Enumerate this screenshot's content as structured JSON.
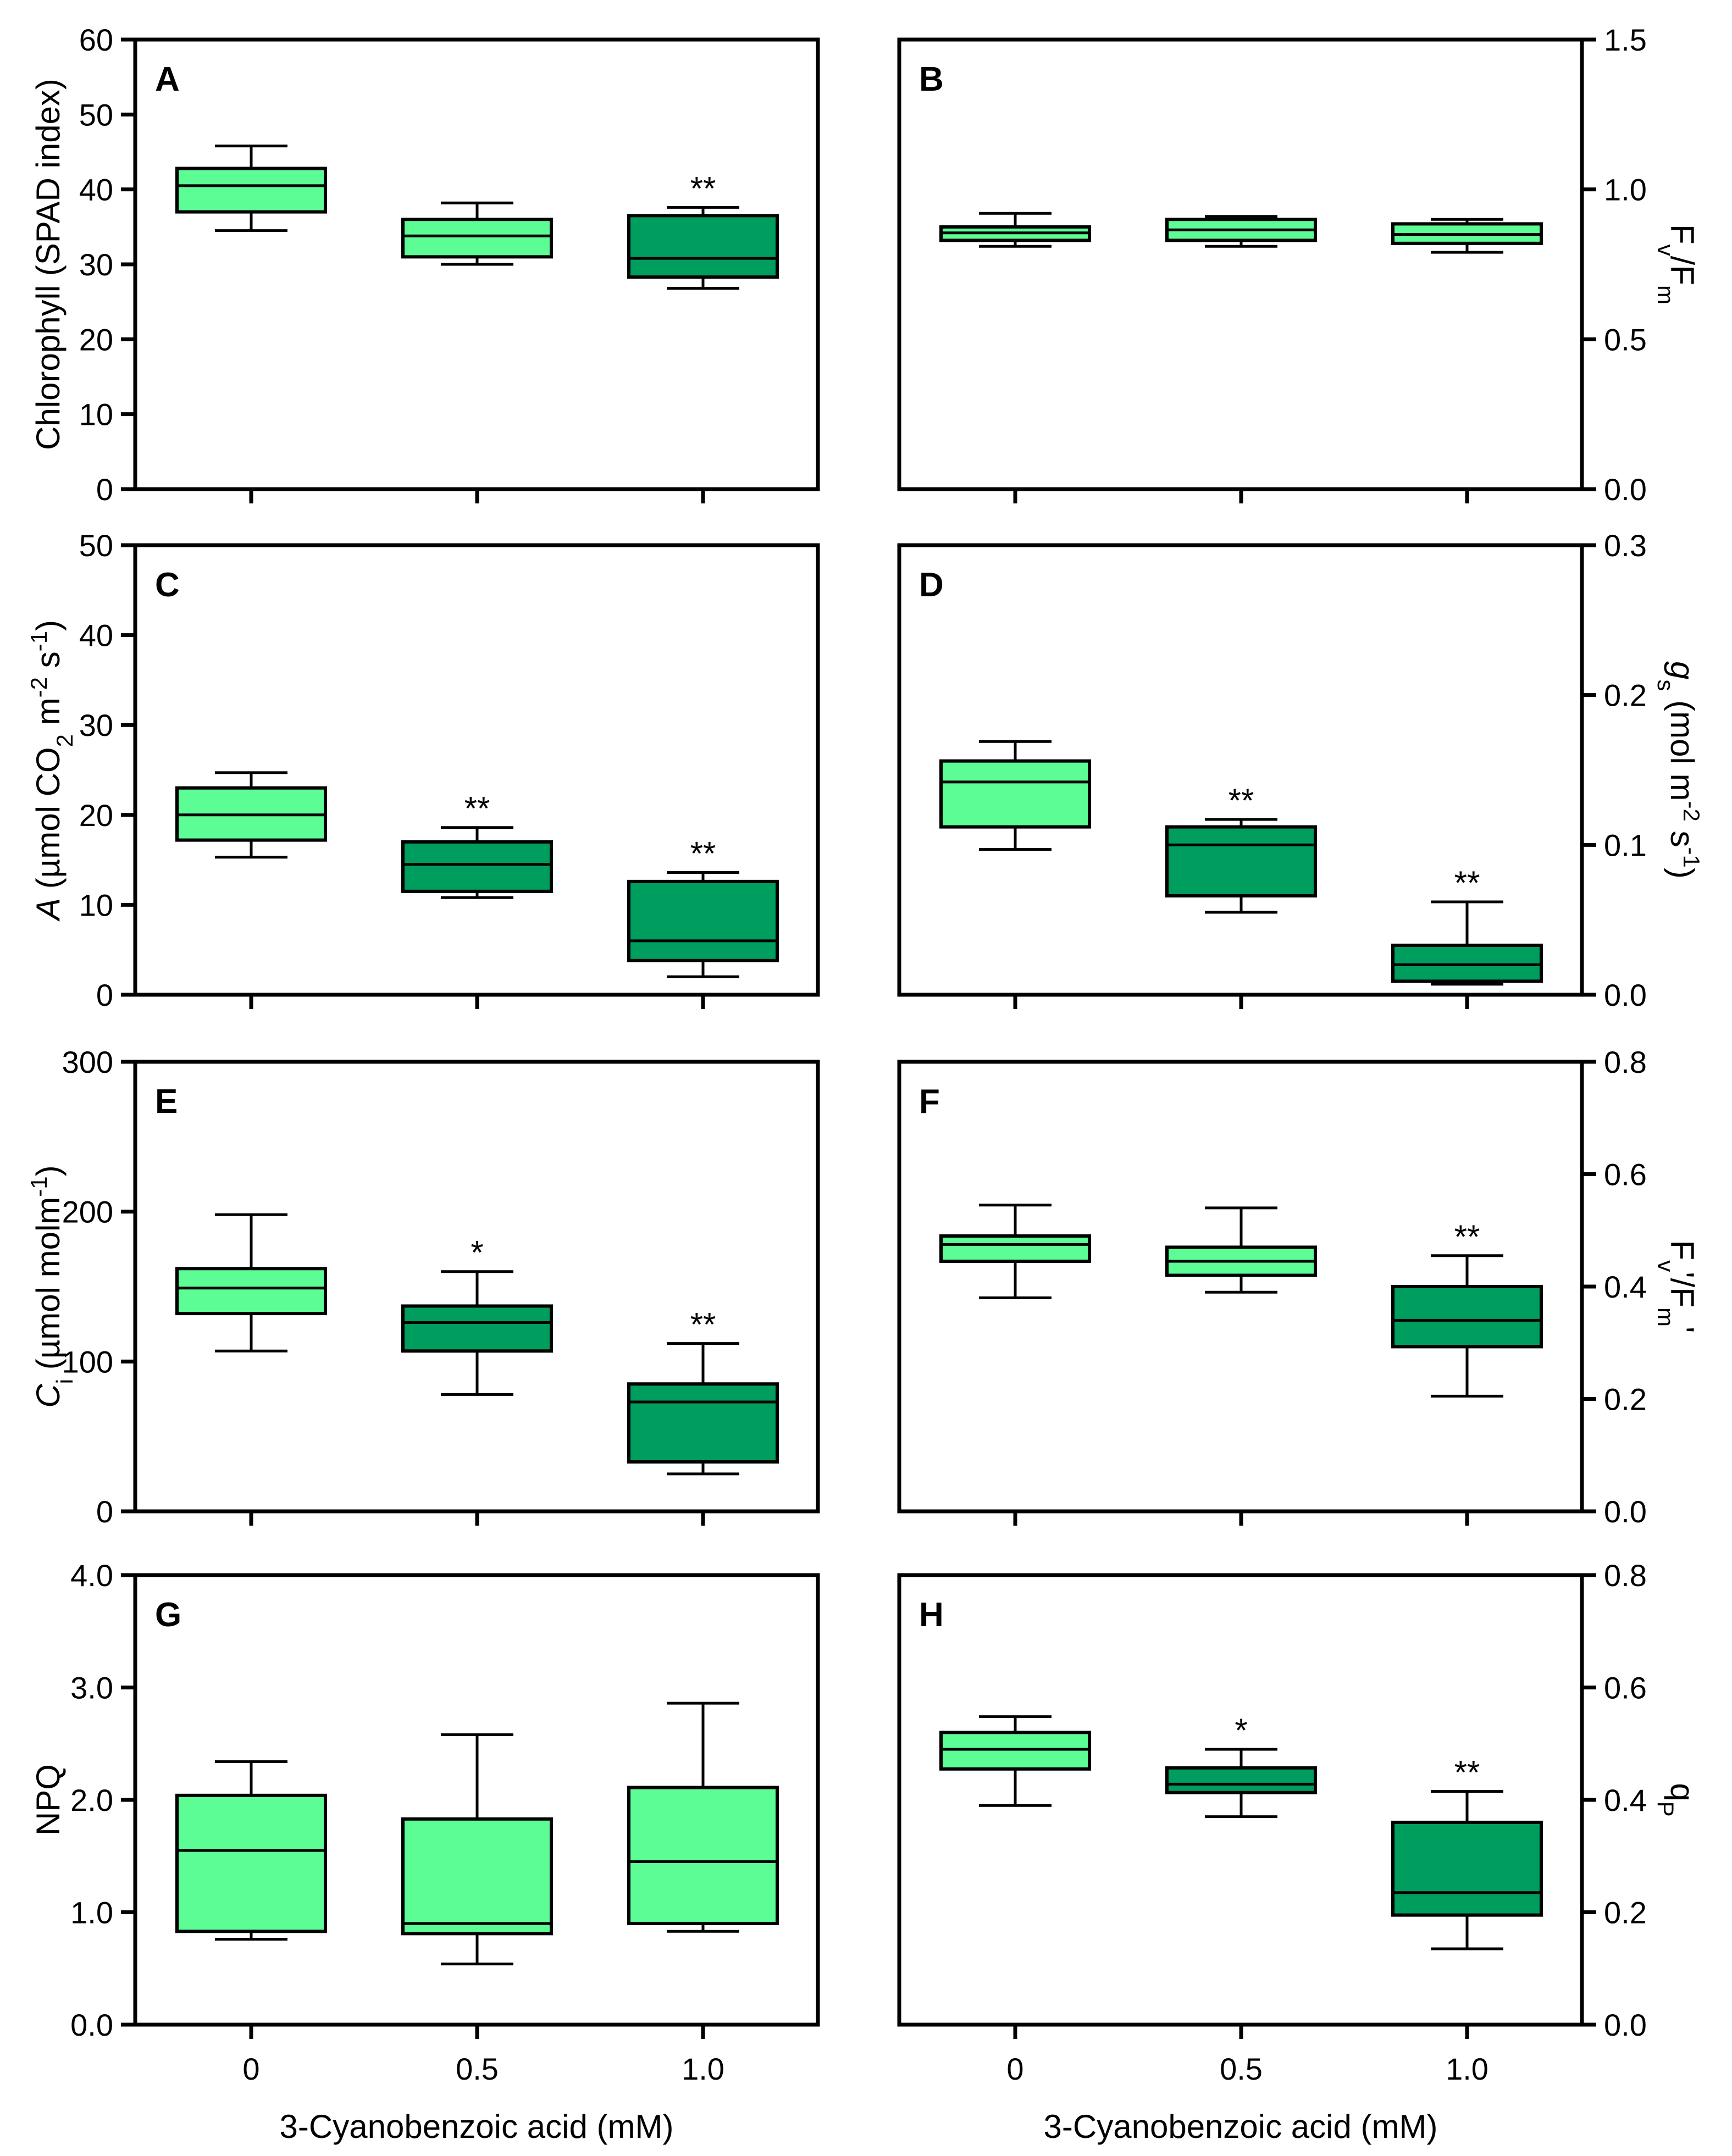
{
  "colors": {
    "light": "#5dfd96",
    "dark": "#009e5e",
    "line": "#000000"
  },
  "chart_data": [
    {
      "panel": "A",
      "type": "box",
      "title": "",
      "ylabel": "Chlorophyll (SPAD index)",
      "xlabel": "",
      "y_axis_side": "left",
      "ylim": [
        0,
        60
      ],
      "yticks": [
        "0",
        "10",
        "20",
        "30",
        "40",
        "50",
        "60"
      ],
      "ytick_values": [
        0,
        10,
        20,
        30,
        40,
        50,
        60
      ],
      "categories": [
        "0",
        "0.5",
        "1.0"
      ],
      "boxes": [
        {
          "min": 34.5,
          "q1": 37,
          "median": 40.5,
          "q3": 42.8,
          "max": 45.8,
          "color": "light",
          "sig": ""
        },
        {
          "min": 30,
          "q1": 31,
          "median": 33.8,
          "q3": 36,
          "max": 38.2,
          "color": "light",
          "sig": ""
        },
        {
          "min": 26.8,
          "q1": 28.3,
          "median": 30.8,
          "q3": 36.5,
          "max": 37.6,
          "color": "dark",
          "sig": "**"
        }
      ]
    },
    {
      "panel": "B",
      "type": "box",
      "title": "",
      "ylabel": "Fv/Fm",
      "xlabel": "",
      "y_axis_side": "right",
      "ylim": [
        0,
        1.5
      ],
      "yticks": [
        "0.0",
        "0.5",
        "1.0",
        "1.5"
      ],
      "ytick_values": [
        0,
        0.5,
        1.0,
        1.5
      ],
      "categories": [
        "0",
        "0.5",
        "1.0"
      ],
      "boxes": [
        {
          "min": 0.81,
          "q1": 0.83,
          "median": 0.855,
          "q3": 0.875,
          "max": 0.92,
          "color": "light",
          "sig": ""
        },
        {
          "min": 0.81,
          "q1": 0.83,
          "median": 0.865,
          "q3": 0.9,
          "max": 0.91,
          "color": "light",
          "sig": ""
        },
        {
          "min": 0.79,
          "q1": 0.82,
          "median": 0.85,
          "q3": 0.885,
          "max": 0.9,
          "color": "light",
          "sig": ""
        }
      ]
    },
    {
      "panel": "C",
      "type": "box",
      "title": "",
      "ylabel": "A (µmol CO2 m-2 s-1)",
      "xlabel": "",
      "y_axis_side": "left",
      "ylim": [
        0,
        50
      ],
      "yticks": [
        "0",
        "10",
        "20",
        "30",
        "40",
        "50"
      ],
      "ytick_values": [
        0,
        10,
        20,
        30,
        40,
        50
      ],
      "categories": [
        "0",
        "0.5",
        "1.0"
      ],
      "boxes": [
        {
          "min": 15.3,
          "q1": 17.2,
          "median": 20,
          "q3": 23,
          "max": 24.7,
          "color": "light",
          "sig": ""
        },
        {
          "min": 10.8,
          "q1": 11.5,
          "median": 14.5,
          "q3": 17,
          "max": 18.6,
          "color": "dark",
          "sig": "**"
        },
        {
          "min": 2,
          "q1": 3.8,
          "median": 6,
          "q3": 12.6,
          "max": 13.6,
          "color": "dark",
          "sig": "**"
        }
      ]
    },
    {
      "panel": "D",
      "type": "box",
      "title": "",
      "ylabel": "gs (mol m-2 s-1)",
      "xlabel": "",
      "y_axis_side": "right",
      "ylim": [
        0,
        0.3
      ],
      "yticks": [
        "0.0",
        "0.1",
        "0.2",
        "0.3"
      ],
      "ytick_values": [
        0,
        0.1,
        0.2,
        0.3
      ],
      "categories": [
        "0",
        "0.5",
        "1.0"
      ],
      "boxes": [
        {
          "min": 0.097,
          "q1": 0.112,
          "median": 0.142,
          "q3": 0.156,
          "max": 0.169,
          "color": "light",
          "sig": ""
        },
        {
          "min": 0.055,
          "q1": 0.066,
          "median": 0.1,
          "q3": 0.112,
          "max": 0.117,
          "color": "dark",
          "sig": "**"
        },
        {
          "min": 0.007,
          "q1": 0.009,
          "median": 0.02,
          "q3": 0.033,
          "max": 0.062,
          "color": "dark",
          "sig": "**"
        }
      ]
    },
    {
      "panel": "E",
      "type": "box",
      "title": "",
      "ylabel": "Ci (µmol molm-1)",
      "xlabel": "",
      "y_axis_side": "left",
      "ylim": [
        0,
        300
      ],
      "yticks": [
        "0",
        "100",
        "200",
        "300"
      ],
      "ytick_values": [
        0,
        100,
        200,
        300
      ],
      "categories": [
        "0",
        "0.5",
        "1.0"
      ],
      "boxes": [
        {
          "min": 107,
          "q1": 132,
          "median": 149,
          "q3": 162,
          "max": 198,
          "color": "light",
          "sig": ""
        },
        {
          "min": 78,
          "q1": 107,
          "median": 126,
          "q3": 137,
          "max": 160,
          "color": "dark",
          "sig": "*"
        },
        {
          "min": 25,
          "q1": 33,
          "median": 73,
          "q3": 85,
          "max": 112,
          "color": "dark",
          "sig": "**"
        }
      ]
    },
    {
      "panel": "F",
      "type": "box",
      "title": "",
      "ylabel": "Fv'/Fm'",
      "xlabel": "",
      "y_axis_side": "right",
      "ylim": [
        0,
        0.8
      ],
      "yticks": [
        "0.0",
        "0.2",
        "0.4",
        "0.6",
        "0.8"
      ],
      "ytick_values": [
        0,
        0.2,
        0.4,
        0.6,
        0.8
      ],
      "categories": [
        "0",
        "0.5",
        "1.0"
      ],
      "boxes": [
        {
          "min": 0.38,
          "q1": 0.445,
          "median": 0.475,
          "q3": 0.49,
          "max": 0.545,
          "color": "light",
          "sig": ""
        },
        {
          "min": 0.39,
          "q1": 0.42,
          "median": 0.445,
          "q3": 0.47,
          "max": 0.54,
          "color": "light",
          "sig": ""
        },
        {
          "min": 0.205,
          "q1": 0.293,
          "median": 0.34,
          "q3": 0.4,
          "max": 0.455,
          "color": "dark",
          "sig": "**"
        }
      ]
    },
    {
      "panel": "G",
      "type": "box",
      "title": "",
      "ylabel": "NPQ",
      "xlabel": "3-Cyanobenzoic acid (mM)",
      "y_axis_side": "left",
      "ylim": [
        0,
        4
      ],
      "yticks": [
        "0.0",
        "1.0",
        "2.0",
        "3.0",
        "4.0"
      ],
      "ytick_values": [
        0,
        1,
        2,
        3,
        4
      ],
      "categories": [
        "0",
        "0.5",
        "1.0"
      ],
      "boxes": [
        {
          "min": 0.76,
          "q1": 0.83,
          "median": 1.55,
          "q3": 2.04,
          "max": 2.34,
          "color": "light",
          "sig": ""
        },
        {
          "min": 0.54,
          "q1": 0.81,
          "median": 0.9,
          "q3": 1.83,
          "max": 2.58,
          "color": "light",
          "sig": ""
        },
        {
          "min": 0.83,
          "q1": 0.9,
          "median": 1.45,
          "q3": 2.11,
          "max": 2.86,
          "color": "light",
          "sig": ""
        }
      ]
    },
    {
      "panel": "H",
      "type": "box",
      "title": "",
      "ylabel": "qP",
      "xlabel": "3-Cyanobenzoic acid (mM)",
      "y_axis_side": "right",
      "ylim": [
        0,
        0.8
      ],
      "yticks": [
        "0.0",
        "0.2",
        "0.4",
        "0.6",
        "0.8"
      ],
      "ytick_values": [
        0,
        0.2,
        0.4,
        0.6,
        0.8
      ],
      "categories": [
        "0",
        "0.5",
        "1.0"
      ],
      "boxes": [
        {
          "min": 0.39,
          "q1": 0.455,
          "median": 0.49,
          "q3": 0.52,
          "max": 0.548,
          "color": "light",
          "sig": ""
        },
        {
          "min": 0.37,
          "q1": 0.413,
          "median": 0.428,
          "q3": 0.457,
          "max": 0.49,
          "color": "dark",
          "sig": "*"
        },
        {
          "min": 0.135,
          "q1": 0.195,
          "median": 0.235,
          "q3": 0.36,
          "max": 0.415,
          "color": "dark",
          "sig": "**"
        }
      ]
    }
  ]
}
